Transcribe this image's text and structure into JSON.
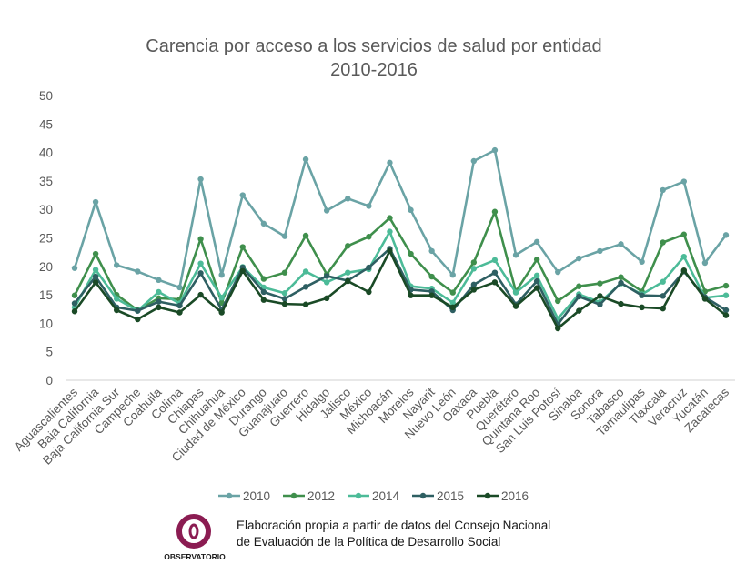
{
  "chart_data": {
    "type": "line",
    "title": [
      "Carencia por acceso a los servicios de salud por entidad",
      "2010-2016"
    ],
    "xlabel": "",
    "ylabel": "",
    "ylim": [
      0,
      50
    ],
    "yticks": [
      0,
      5,
      10,
      15,
      20,
      25,
      30,
      35,
      40,
      45,
      50
    ],
    "grid": false,
    "legend_position": "bottom",
    "categories": [
      "Aguascalientes",
      "Baja California",
      "Baja California Sur",
      "Campeche",
      "Coahuila",
      "Colima",
      "Chiapas",
      "Chihuahua",
      "Ciudad de México",
      "Durango",
      "Guanajuato",
      "Guerrero",
      "Hidalgo",
      "Jalisco",
      "México",
      "Michoacán",
      "Morelos",
      "Nayarit",
      "Nuevo León",
      "Oaxaca",
      "Puebla",
      "Querétaro",
      "Quintana Roo",
      "San Luis Potosí",
      "Sinaloa",
      "Sonora",
      "Tabasco",
      "Tamaulipas",
      "Tlaxcala",
      "Veracruz",
      "Yucatán",
      "Zacatecas"
    ],
    "series": [
      {
        "name": "2010",
        "color": "#6aa3a5",
        "values": [
          19.7,
          31.3,
          20.2,
          19.1,
          17.6,
          16.3,
          35.3,
          18.5,
          32.5,
          27.5,
          25.3,
          38.8,
          29.8,
          31.9,
          30.6,
          38.2,
          29.9,
          22.7,
          18.5,
          38.5,
          40.4,
          22.0,
          24.3,
          19.0,
          21.4,
          22.7,
          23.9,
          20.8,
          33.4,
          34.9,
          20.6,
          25.5
        ]
      },
      {
        "name": "2012",
        "color": "#3f8f4c",
        "values": [
          14.9,
          22.2,
          15.0,
          12.3,
          14.4,
          14.2,
          24.8,
          13.6,
          23.4,
          17.8,
          18.9,
          25.4,
          18.6,
          23.6,
          25.2,
          28.5,
          22.2,
          18.2,
          15.4,
          20.7,
          29.6,
          15.6,
          21.2,
          13.9,
          16.5,
          17.0,
          18.1,
          15.6,
          24.2,
          25.6,
          15.6,
          16.6
        ]
      },
      {
        "name": "2014",
        "color": "#4cbb98",
        "values": [
          12.8,
          19.4,
          14.3,
          12.2,
          15.5,
          13.5,
          20.5,
          14.5,
          19.9,
          16.3,
          15.3,
          19.1,
          17.2,
          18.9,
          19.5,
          26.1,
          16.5,
          16.1,
          13.6,
          19.6,
          21.1,
          15.4,
          18.4,
          10.8,
          15.1,
          13.7,
          17.0,
          15.1,
          17.3,
          21.7,
          14.5,
          14.9
        ]
      },
      {
        "name": "2015",
        "color": "#2e5f62",
        "values": [
          13.5,
          18.2,
          12.8,
          12.2,
          13.8,
          13.1,
          18.8,
          12.4,
          19.8,
          15.5,
          14.3,
          16.4,
          18.3,
          17.5,
          19.8,
          23.1,
          15.9,
          15.6,
          12.3,
          16.8,
          18.9,
          13.3,
          17.4,
          9.8,
          14.7,
          13.3,
          17.1,
          14.9,
          14.8,
          19.1,
          14.6,
          12.3
        ]
      },
      {
        "name": "2016",
        "color": "#1a4a26",
        "values": [
          12.1,
          17.2,
          12.3,
          10.7,
          12.8,
          11.9,
          15.0,
          11.9,
          19.2,
          14.1,
          13.4,
          13.3,
          14.4,
          17.4,
          15.5,
          22.7,
          14.9,
          14.9,
          12.8,
          15.9,
          17.2,
          13.0,
          16.2,
          9.1,
          12.2,
          14.8,
          13.4,
          12.8,
          12.6,
          19.3,
          14.3,
          11.4
        ]
      }
    ]
  },
  "source": {
    "lines": [
      "Elaboración propia a partir de datos del Consejo Nacional",
      "de Evaluación de la Política de Desarrollo Social"
    ],
    "logo_text": "OBSERVATORIO",
    "logo_color": "#8b1c52"
  }
}
